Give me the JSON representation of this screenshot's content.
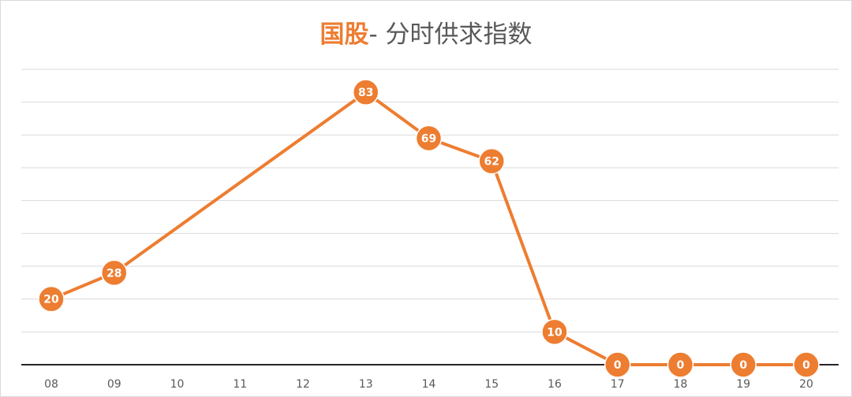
{
  "chart_data": {
    "type": "line",
    "title": {
      "accent": "国股",
      "separator": "-",
      "main": " 分时供求指数"
    },
    "categories": [
      "08",
      "09",
      "10",
      "11",
      "12",
      "13",
      "14",
      "15",
      "16",
      "17",
      "18",
      "19",
      "20"
    ],
    "series": [
      {
        "points": [
          {
            "x": "08",
            "y": 20
          },
          {
            "x": "09",
            "y": 28
          },
          {
            "x": "13",
            "y": 83
          },
          {
            "x": "14",
            "y": 69
          },
          {
            "x": "15",
            "y": 62
          },
          {
            "x": "16",
            "y": 10
          },
          {
            "x": "17",
            "y": 0
          },
          {
            "x": "18",
            "y": 0
          },
          {
            "x": "19",
            "y": 0
          },
          {
            "x": "20",
            "y": 0
          }
        ]
      }
    ],
    "ylim": [
      0,
      90
    ],
    "y_gridline_step": 10,
    "grid": true,
    "show_y_tick_labels": false,
    "colors": {
      "line": "#ed7d31",
      "marker": "#ed7d31",
      "data_label": "#ffffff",
      "title_accent": "#ed7d31",
      "title_text": "#595959",
      "grid": "#d9d9d9",
      "axis": "#262626",
      "tick_label": "#595959"
    }
  }
}
